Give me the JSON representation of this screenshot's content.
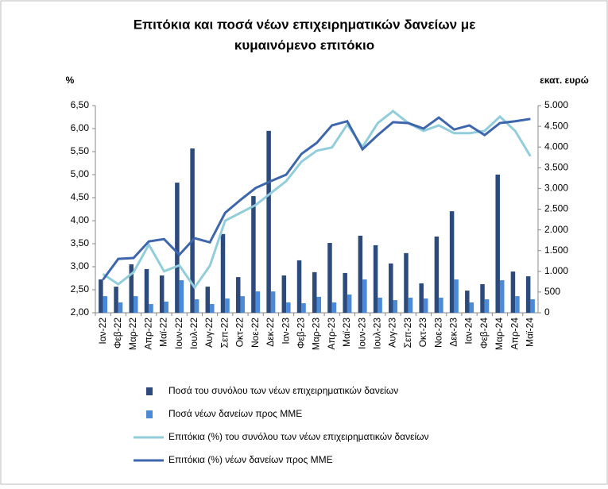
{
  "chart_data": {
    "type": "bar-line",
    "title": [
      "Επιτόκια και ποσά νέων επιχειρηματικών δανείων με",
      "κυμαινόμενο επιτόκιο"
    ],
    "y_label": "%",
    "y2_label": "εκατ. ευρώ",
    "categories": [
      "Ιαν-22",
      "Φεβ-22",
      "Μαρ-22",
      "Απρ-22",
      "Μαϊ-22",
      "Ιουν-22",
      "Ιουλ-22",
      "Αυγ-22",
      "Σεπ-22",
      "Οκτ-22",
      "Νοε-22",
      "Δεκ-22",
      "Ιαν-23",
      "Φεβ-23",
      "Μαρ-23",
      "Απρ-23",
      "Μαϊ-23",
      "Ιουν-23",
      "Ιουλ-23",
      "Αυγ-23",
      "Σεπ-23",
      "Οκτ-23",
      "Νοε-23",
      "Δεκ-23",
      "Ιαν-24",
      "Φεβ-24",
      "Μαρ-24",
      "Απρ-24",
      "Μαϊ-24"
    ],
    "ylim": [
      2.0,
      6.5
    ],
    "yticks": [
      {
        "value": 2.0,
        "label": "2,00"
      },
      {
        "value": 2.5,
        "label": "2,50"
      },
      {
        "value": 3.0,
        "label": "3,00"
      },
      {
        "value": 3.5,
        "label": "3,50"
      },
      {
        "value": 4.0,
        "label": "4,00"
      },
      {
        "value": 4.5,
        "label": "4,50"
      },
      {
        "value": 5.0,
        "label": "5,00"
      },
      {
        "value": 5.5,
        "label": "5,50"
      },
      {
        "value": 6.0,
        "label": "6,00"
      },
      {
        "value": 6.5,
        "label": "6,50"
      }
    ],
    "y2lim": [
      0,
      5000
    ],
    "y2ticks": [
      0,
      500,
      {
        "value": 1000,
        "label": "1.000"
      },
      {
        "value": 1500,
        "label": "1.500"
      },
      {
        "value": 2000,
        "label": "2.000"
      },
      {
        "value": 2500,
        "label": "2.500"
      },
      {
        "value": 3000,
        "label": "3.000"
      },
      {
        "value": 3500,
        "label": "3.500"
      },
      {
        "value": 4000,
        "label": "4.000"
      },
      {
        "value": 4500,
        "label": "4.500"
      },
      {
        "value": 5000,
        "label": "5.000"
      }
    ],
    "series": [
      {
        "name": "Ποσά του συνόλου των νέων επιχειρηματικών δανείων",
        "kind": "bar",
        "axis": "y2",
        "color": "#2c4a7c",
        "values": [
          805,
          630,
          1170,
          1055,
          900,
          3140,
          3965,
          630,
          1900,
          860,
          2815,
          4390,
          900,
          1265,
          980,
          1685,
          960,
          1860,
          1630,
          1190,
          1440,
          710,
          1840,
          2450,
          535,
          690,
          3335,
          995,
          880
        ]
      },
      {
        "name": "Ποσά νέων δανείων προς ΜΜΕ",
        "kind": "bar",
        "axis": "y2",
        "color": "#4a8ad6",
        "values": [
          400,
          250,
          400,
          210,
          270,
          785,
          325,
          210,
          345,
          400,
          515,
          515,
          250,
          230,
          385,
          250,
          440,
          805,
          365,
          305,
          365,
          345,
          365,
          805,
          250,
          325,
          785,
          400,
          325
        ]
      },
      {
        "name": "Επιτόκια (%) του συνόλου των νέων επιχειρηματικών δανείων",
        "kind": "line",
        "color": "#92cddc",
        "values": [
          2.84,
          2.62,
          2.88,
          3.48,
          2.9,
          3.03,
          2.55,
          3.02,
          4.0,
          4.17,
          4.34,
          4.6,
          4.86,
          5.28,
          5.52,
          5.59,
          6.09,
          5.6,
          6.12,
          6.38,
          6.12,
          5.95,
          6.07,
          5.9,
          5.9,
          5.95,
          6.26,
          5.95,
          5.4
        ]
      },
      {
        "name": "Επιτόκια (%) νέων δανείων προς ΜΜΕ",
        "kind": "line",
        "color": "#3d66ad",
        "values": [
          2.72,
          3.17,
          3.19,
          3.55,
          3.6,
          3.26,
          3.62,
          3.53,
          4.17,
          4.45,
          4.71,
          4.86,
          5.0,
          5.45,
          5.69,
          6.07,
          6.16,
          5.55,
          5.86,
          6.14,
          6.12,
          6.0,
          6.24,
          5.98,
          6.07,
          5.86,
          6.12,
          6.16,
          6.21
        ]
      }
    ]
  }
}
